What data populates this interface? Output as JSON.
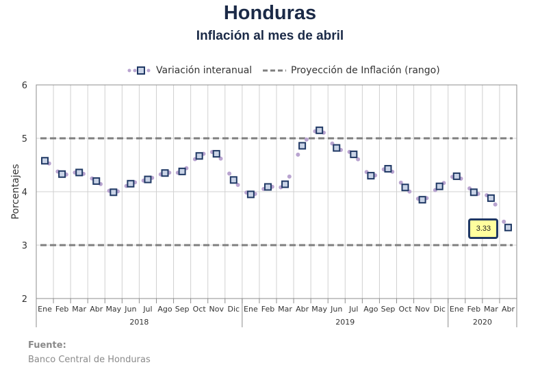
{
  "title": "Honduras",
  "subtitle": "Inflación al mes de abril",
  "legend": {
    "series": "Variación interanual",
    "band": "Proyección de Inflación (rango)"
  },
  "source": {
    "label": "Fuente:",
    "text": "Banco Central de Honduras"
  },
  "callout": "3.33",
  "colors": {
    "marker_edge": "#1f3864",
    "marker_fill": "#c9d3e6",
    "dots": "#b9a4d0",
    "band": "#7f7f7f",
    "grid": "#d0d0d0",
    "callout_bg": "#ffff9e",
    "title": "#1b2a47"
  },
  "chart_data": {
    "type": "line",
    "ylabel": "Porcentajes",
    "ylim": [
      2,
      6
    ],
    "yticks": [
      2,
      3,
      4,
      5,
      6
    ],
    "grid": true,
    "legend_position": "top",
    "years": [
      {
        "label": "2018",
        "months": 12
      },
      {
        "label": "2019",
        "months": 12
      },
      {
        "label": "2020",
        "months": 4
      }
    ],
    "categories": [
      "Ene",
      "Feb",
      "Mar",
      "Abr",
      "May",
      "Jun",
      "Jul",
      "Ago",
      "Sep",
      "Oct",
      "Nov",
      "Dic",
      "Ene",
      "Feb",
      "Mar",
      "Abr",
      "May",
      "Jun",
      "Jul",
      "Ago",
      "Sep",
      "Oct",
      "Nov",
      "Dic",
      "Ene",
      "Feb",
      "Mar",
      "Abr"
    ],
    "series": [
      {
        "name": "Variación interanual",
        "values": [
          4.58,
          4.33,
          4.36,
          4.2,
          3.99,
          4.15,
          4.23,
          4.35,
          4.38,
          4.67,
          4.71,
          4.22,
          3.95,
          4.09,
          4.14,
          4.86,
          5.15,
          4.82,
          4.7,
          4.3,
          4.43,
          4.08,
          3.85,
          4.1,
          4.29,
          3.99,
          3.88,
          3.33
        ]
      }
    ],
    "band": {
      "name": "Proyección de Inflación (rango)",
      "lower": 3,
      "upper": 5
    },
    "annotations": [
      {
        "category_index": 27,
        "text": "3.33"
      }
    ]
  }
}
